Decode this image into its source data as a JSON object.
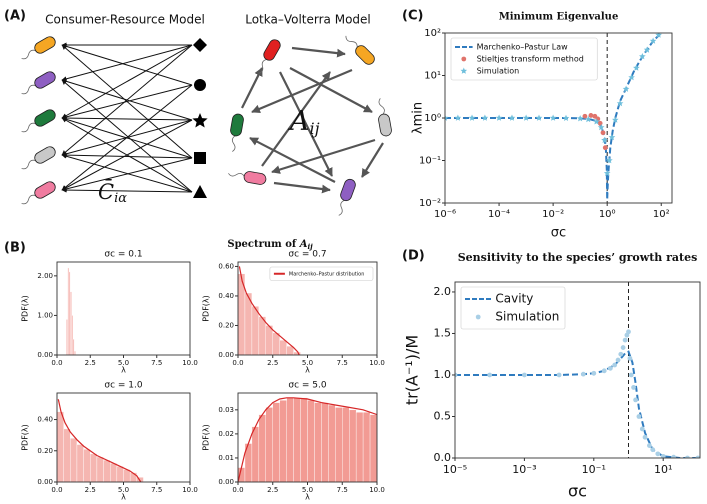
{
  "panel_labels": [
    "(A)",
    "(B)",
    "(C)",
    "(D)"
  ],
  "diagram": {
    "left_title": "Consumer-Resource Model",
    "right_title": "Lotka–Volterra Model",
    "left_matrix": {
      "symbol": "C̄",
      "index": "iα"
    },
    "right_matrix": {
      "symbol": "A",
      "index": "ij"
    }
  },
  "spectrum_title": {
    "text": "Spectrum of ",
    "symbol": "A",
    "index": "ij"
  },
  "chart_data": [
    {
      "type": "histogram",
      "title": "σc = 0.1",
      "xlabel": "λ",
      "ylabel": "PDF(λ)",
      "bins": [
        0.7,
        0.8,
        0.9,
        1.0,
        1.1,
        1.2,
        1.3,
        1.4
      ],
      "values": [
        0.9,
        2.2,
        2.1,
        1.6,
        1.0,
        0.4,
        0.1
      ],
      "color": "#f4aaa4",
      "xlim": [
        0,
        10
      ],
      "ylim": [
        0,
        2.35
      ],
      "xticks": [
        {
          "value": 0,
          "label": "0.0"
        },
        {
          "value": 2.5,
          "label": "2.5"
        },
        {
          "value": 5,
          "label": "5.0"
        },
        {
          "value": 7.5,
          "label": "7.5"
        },
        {
          "value": 10,
          "label": "10.0"
        }
      ],
      "yticks": [
        {
          "value": 0,
          "label": "0.00"
        },
        {
          "value": 1,
          "label": "1.00"
        },
        {
          "value": 2,
          "label": "2.00"
        }
      ]
    },
    {
      "type": "histogram",
      "title": "σc = 0.7",
      "xlabel": "λ",
      "ylabel": "PDF(λ)",
      "bins": [
        0,
        0.5,
        1,
        1.5,
        2,
        2.5,
        3,
        3.5,
        4,
        4.5
      ],
      "values": [
        0.55,
        0.42,
        0.33,
        0.26,
        0.2,
        0.15,
        0.1,
        0.06,
        0.02
      ],
      "color": "#f4aaa4",
      "line": {
        "name": "Marchenko–Pastur distribution",
        "color": "#d62728",
        "x": [
          0.1,
          0.3,
          0.6,
          1,
          1.5,
          2,
          2.5,
          3,
          3.5,
          4,
          4.3,
          4.4
        ],
        "values": [
          0.6,
          0.5,
          0.42,
          0.35,
          0.28,
          0.22,
          0.17,
          0.13,
          0.09,
          0.05,
          0.02,
          0
        ]
      },
      "legend": "upper right",
      "xlim": [
        0,
        10
      ],
      "ylim": [
        0,
        0.63
      ],
      "xticks": [
        {
          "value": 0,
          "label": "0.0"
        },
        {
          "value": 2.5,
          "label": "2.5"
        },
        {
          "value": 5,
          "label": "5.0"
        },
        {
          "value": 7.5,
          "label": "7.5"
        },
        {
          "value": 10,
          "label": "10.0"
        }
      ],
      "yticks": [
        {
          "value": 0,
          "label": "0.00"
        },
        {
          "value": 0.2,
          "label": "0.20"
        },
        {
          "value": 0.4,
          "label": "0.40"
        },
        {
          "value": 0.6,
          "label": "0.60"
        }
      ]
    },
    {
      "type": "histogram",
      "title": "σc = 1.0",
      "xlabel": "λ",
      "ylabel": "PDF(λ)",
      "bins": [
        0,
        0.5,
        1,
        1.5,
        2,
        2.5,
        3,
        3.5,
        4,
        4.5,
        5,
        5.5,
        6,
        6.5
      ],
      "values": [
        0.45,
        0.34,
        0.28,
        0.24,
        0.21,
        0.18,
        0.16,
        0.14,
        0.12,
        0.1,
        0.08,
        0.06,
        0.03
      ],
      "color": "#f4aaa4",
      "line": {
        "color": "#d62728",
        "x": [
          0.1,
          0.3,
          0.6,
          1,
          1.5,
          2,
          3,
          4,
          5,
          5.5,
          6,
          6.3
        ],
        "values": [
          0.53,
          0.45,
          0.38,
          0.32,
          0.27,
          0.23,
          0.17,
          0.13,
          0.09,
          0.07,
          0.04,
          0
        ]
      },
      "xlim": [
        0,
        10
      ],
      "ylim": [
        0,
        0.57
      ],
      "xticks": [
        {
          "value": 0,
          "label": "0.0"
        },
        {
          "value": 2.5,
          "label": "2.5"
        },
        {
          "value": 5,
          "label": "5.0"
        },
        {
          "value": 7.5,
          "label": "7.5"
        },
        {
          "value": 10,
          "label": "10.0"
        }
      ],
      "yticks": [
        {
          "value": 0,
          "label": "0.00"
        },
        {
          "value": 0.2,
          "label": "0.20"
        },
        {
          "value": 0.4,
          "label": "0.40"
        }
      ]
    },
    {
      "type": "histogram",
      "title": "σc = 5.0",
      "xlabel": "λ",
      "ylabel": "PDF(λ)",
      "bins": [
        0,
        0.5,
        1,
        1.5,
        2,
        2.5,
        3,
        3.5,
        4,
        4.5,
        5,
        5.5,
        6,
        6.5,
        7,
        7.5,
        8,
        8.5,
        9,
        9.5,
        10
      ],
      "values": [
        0.006,
        0.016,
        0.023,
        0.028,
        0.031,
        0.033,
        0.034,
        0.035,
        0.035,
        0.035,
        0.034,
        0.033,
        0.033,
        0.032,
        0.031,
        0.031,
        0.03,
        0.029,
        0.029,
        0.028
      ],
      "color": "#f08a82",
      "line": {
        "color": "#d62728",
        "x": [
          0,
          0.5,
          1,
          1.5,
          2,
          2.5,
          3,
          3.5,
          4,
          5,
          6,
          7,
          8,
          9,
          10
        ],
        "values": [
          0,
          0.012,
          0.02,
          0.026,
          0.03,
          0.033,
          0.0345,
          0.035,
          0.035,
          0.0345,
          0.033,
          0.032,
          0.031,
          0.03,
          0.028
        ]
      },
      "xlim": [
        0,
        10
      ],
      "ylim": [
        0,
        0.037
      ],
      "xticks": [
        {
          "value": 0,
          "label": "0.0"
        },
        {
          "value": 2.5,
          "label": "2.5"
        },
        {
          "value": 5,
          "label": "5.0"
        },
        {
          "value": 7.5,
          "label": "7.5"
        },
        {
          "value": 10,
          "label": "10.0"
        }
      ],
      "yticks": [
        {
          "value": 0,
          "label": "0.00"
        },
        {
          "value": 0.01,
          "label": "0.01"
        },
        {
          "value": 0.02,
          "label": "0.02"
        },
        {
          "value": 0.03,
          "label": "0.03"
        }
      ]
    },
    {
      "type": "line",
      "title": "Minimum Eigenvalue",
      "xlabel": "σc",
      "ylabel": "λmin",
      "xscale": "log",
      "yscale": "log",
      "xlim": [
        1e-06,
        250
      ],
      "ylim": [
        0.01,
        100
      ],
      "vline": 1,
      "legend": "upper left",
      "xticks": [
        {
          "value": 1e-06,
          "label": "10⁻⁶"
        },
        {
          "value": 0.0001,
          "label": "10⁻⁴"
        },
        {
          "value": 0.01,
          "label": "10⁻²"
        },
        {
          "value": 1,
          "label": "10⁰"
        },
        {
          "value": 100,
          "label": "10²"
        }
      ],
      "yticks": [
        {
          "value": 0.01,
          "label": "10⁻²"
        },
        {
          "value": 0.1,
          "label": "10⁻¹"
        },
        {
          "value": 1,
          "label": "10⁰"
        },
        {
          "value": 10,
          "label": "10¹"
        },
        {
          "value": 100,
          "label": "10²"
        }
      ],
      "series": [
        {
          "name": "Marchenko–Pastur Law",
          "color": "#2f7bbf",
          "style": "dashed",
          "x": [
            1e-06,
            0.0001,
            0.01,
            0.03,
            0.1,
            0.2,
            0.4,
            0.6,
            0.8,
            0.9,
            0.97,
            1.0,
            1.03,
            1.1,
            1.3,
            1.6,
            2,
            3,
            5,
            10,
            20,
            50,
            100
          ],
          "values": [
            1,
            1,
            1,
            1,
            0.98,
            0.95,
            0.85,
            0.65,
            0.35,
            0.18,
            0.06,
            0.012,
            0.02,
            0.05,
            0.2,
            0.5,
            1,
            2.5,
            5,
            13,
            28,
            65,
            100
          ]
        },
        {
          "name": "Stieltjes transform method",
          "color": "#e0736b",
          "style": "dots",
          "x": [
            0.15,
            0.25,
            0.35,
            0.45,
            0.55,
            0.7,
            0.85
          ],
          "values": [
            1.1,
            1.15,
            1.1,
            0.95,
            0.75,
            0.45,
            0.2
          ]
        },
        {
          "name": "Simulation",
          "color": "#6fbfdc",
          "style": "stars",
          "x": [
            1e-06,
            3e-06,
            1e-05,
            3e-05,
            0.0001,
            0.0003,
            0.001,
            0.003,
            0.01,
            0.03,
            0.1,
            0.2,
            0.4,
            0.6,
            0.8,
            1.0,
            1.2,
            1.5,
            2,
            3,
            5,
            8,
            12,
            20,
            30,
            50,
            80
          ],
          "values": [
            1,
            1,
            1,
            1,
            1,
            1,
            1,
            1,
            1,
            0.99,
            0.97,
            0.93,
            0.82,
            0.6,
            0.3,
            0.05,
            0.1,
            0.35,
            0.9,
            2.2,
            4.8,
            9,
            15,
            28,
            40,
            65,
            90
          ]
        }
      ]
    },
    {
      "type": "line",
      "title": "Sensitivity to the species’ growth rates",
      "xlabel": "σc",
      "ylabel": "tr(A⁻¹)/M",
      "xscale": "log",
      "xlim": [
        1e-05,
        115
      ],
      "ylim": [
        0,
        2.12
      ],
      "vline": 1,
      "legend": "upper left",
      "xticks": [
        {
          "value": 1e-05,
          "label": "10⁻⁵"
        },
        {
          "value": 0.001,
          "label": "10⁻³"
        },
        {
          "value": 0.1,
          "label": "10⁻¹"
        },
        {
          "value": 10,
          "label": "10¹"
        }
      ],
      "yticks": [
        {
          "value": 0,
          "label": "0.0"
        },
        {
          "value": 0.5,
          "label": "0.5"
        },
        {
          "value": 1,
          "label": "1.0"
        },
        {
          "value": 1.5,
          "label": "1.5"
        },
        {
          "value": 2,
          "label": "2.0"
        }
      ],
      "series": [
        {
          "name": "Cavity",
          "color": "#2f7bbf",
          "style": "dashed",
          "x": [
            1e-05,
            0.001,
            0.01,
            0.05,
            0.1,
            0.2,
            0.4,
            0.6,
            0.8,
            1,
            1.3,
            1.6,
            2,
            3,
            5,
            10,
            30,
            115
          ],
          "values": [
            1,
            1,
            1,
            1.01,
            1.02,
            1.05,
            1.12,
            1.2,
            1.26,
            1.28,
            1.15,
            0.9,
            0.6,
            0.3,
            0.1,
            0.02,
            0,
            0
          ]
        },
        {
          "name": "Simulation",
          "color": "#a9cfe6",
          "style": "dots",
          "x": [
            1e-05,
            0.0001,
            0.001,
            0.01,
            0.05,
            0.1,
            0.2,
            0.3,
            0.4,
            0.5,
            0.6,
            0.7,
            0.8,
            0.9,
            1.0,
            1.1,
            1.2,
            1.4,
            1.6,
            2,
            2.5,
            3,
            4,
            5,
            7,
            10,
            20,
            50,
            100
          ],
          "values": [
            1,
            1,
            1,
            1,
            1.01,
            1.02,
            1.05,
            1.08,
            1.12,
            1.18,
            1.25,
            1.33,
            1.42,
            1.48,
            1.52,
            1.2,
            1.0,
            0.85,
            0.7,
            0.5,
            0.35,
            0.25,
            0.15,
            0.1,
            0.05,
            0.02,
            0.01,
            0,
            0
          ]
        }
      ]
    }
  ]
}
